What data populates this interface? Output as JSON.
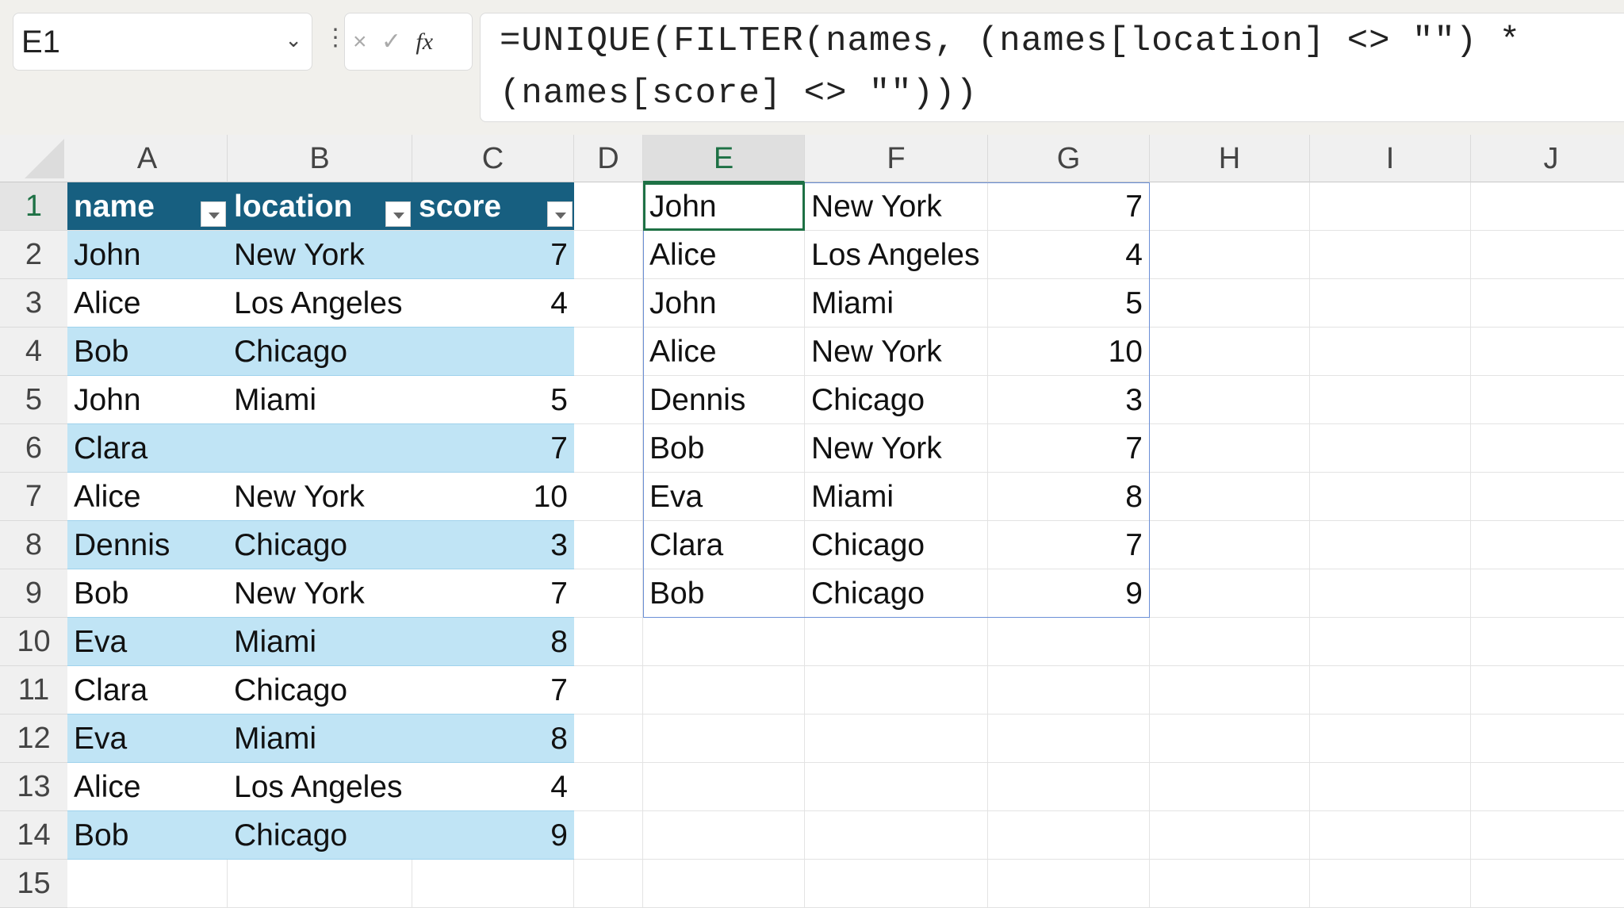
{
  "formula_bar": {
    "name_box": "E1",
    "formula": "=UNIQUE(FILTER(names, (names[location] <> \"\") *\n(names[score] <> \"\")))",
    "cancel_icon": "×",
    "enter_icon": "✓",
    "fx_label": "fx"
  },
  "columns": [
    "A",
    "B",
    "C",
    "D",
    "E",
    "F",
    "G",
    "H",
    "I",
    "J"
  ],
  "rows": [
    "1",
    "2",
    "3",
    "4",
    "5",
    "6",
    "7",
    "8",
    "9",
    "10",
    "11",
    "12",
    "13",
    "14",
    "15"
  ],
  "table": {
    "headers": [
      "name",
      "location",
      "score"
    ],
    "rows": [
      [
        "John",
        "New York",
        "7"
      ],
      [
        "Alice",
        "Los Angeles",
        "4"
      ],
      [
        "Bob",
        "Chicago",
        ""
      ],
      [
        "John",
        "Miami",
        "5"
      ],
      [
        "Clara",
        "",
        "7"
      ],
      [
        "Alice",
        "New York",
        "10"
      ],
      [
        "Dennis",
        "Chicago",
        "3"
      ],
      [
        "Bob",
        "New York",
        "7"
      ],
      [
        "Eva",
        "Miami",
        "8"
      ],
      [
        "Clara",
        "Chicago",
        "7"
      ],
      [
        "Eva",
        "Miami",
        "8"
      ],
      [
        "Alice",
        "Los Angeles",
        "4"
      ],
      [
        "Bob",
        "Chicago",
        "9"
      ]
    ]
  },
  "result": [
    [
      "John",
      "New York",
      "7"
    ],
    [
      "Alice",
      "Los Angeles",
      "4"
    ],
    [
      "John",
      "Miami",
      "5"
    ],
    [
      "Alice",
      "New York",
      "10"
    ],
    [
      "Dennis",
      "Chicago",
      "3"
    ],
    [
      "Bob",
      "New York",
      "7"
    ],
    [
      "Eva",
      "Miami",
      "8"
    ],
    [
      "Clara",
      "Chicago",
      "7"
    ],
    [
      "Bob",
      "Chicago",
      "9"
    ]
  ],
  "colors": {
    "table_header": "#175f80",
    "table_band": "#c0e4f5",
    "selection": "#1e7145"
  }
}
